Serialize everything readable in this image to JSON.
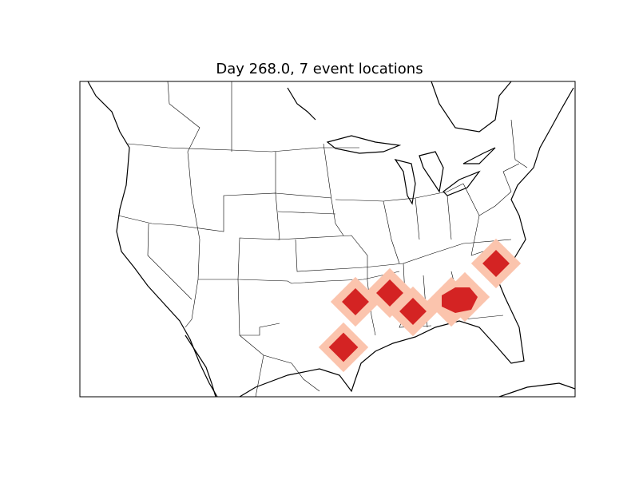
{
  "title": "Day 268.0, 7 event locations",
  "colors": {
    "event_core": "#d42323",
    "event_halo": "#fbc4ad",
    "coast": "#000000",
    "background": "#ffffff"
  }
}
